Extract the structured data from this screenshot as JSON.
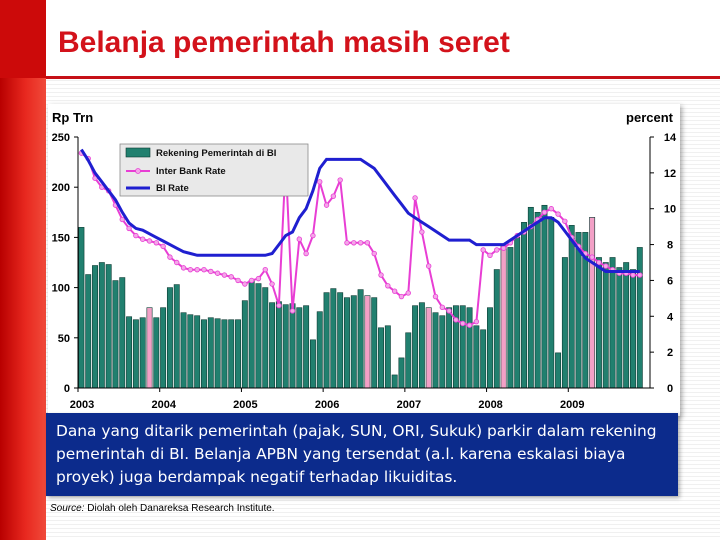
{
  "slide": {
    "title": "Belanja pemerintah masih seret",
    "caption": "Dana yang ditarik pemerintah (pajak, SUN, ORI, Sukuk) parkir dalam rekening pemerintah di BI. Belanja APBN yang tersendat (a.l. karena eskalasi biaya proyek) juga berdampak negatif terhadap likuiditas.",
    "source_label": "Source:",
    "source_text": " Diolah oleh Danareksa Research Institute."
  },
  "colors": {
    "bar_fill": "#21806f",
    "bar_highlight": "#f2a0c6",
    "interbank": "#e83ed4",
    "interbank_marker": "#f4a6e8",
    "bi_rate": "#1f1fd0",
    "title": "#d3121b",
    "caption_bg": "#0c2b8c"
  },
  "chart_data": {
    "type": "bar",
    "ylabel_left": "Rp Trn",
    "ylabel_right": "percent",
    "ylim_left": [
      0,
      250
    ],
    "ylim_right": [
      0,
      14
    ],
    "yticks_left": [
      "0",
      "50",
      "100",
      "150",
      "200",
      "250"
    ],
    "yticks_right": [
      "0",
      "2",
      "4",
      "6",
      "8",
      "10",
      "12",
      "14"
    ],
    "xticks": [
      "2003",
      "2004",
      "2005",
      "2006",
      "2007",
      "2008",
      "2009"
    ],
    "x_start": 2003.0,
    "x_step_months": 1,
    "legend": {
      "placement": "top-left",
      "entries": [
        "Rekening Pemerintah di BI",
        "Inter Bank Rate",
        "BI Rate"
      ]
    },
    "series": [
      {
        "name": "Rekening Pemerintah di BI",
        "kind": "bar",
        "axis": "left",
        "highlighted_months": [
          10,
          42,
          51,
          62,
          75,
          124
        ],
        "values": [
          160,
          113,
          122,
          125,
          123,
          107,
          110,
          71,
          68,
          70,
          80,
          70,
          80,
          100,
          103,
          75,
          73,
          72,
          68,
          70,
          69,
          68,
          68,
          68,
          87,
          107,
          104,
          100,
          85,
          86,
          83,
          84,
          80,
          82,
          48,
          76,
          95,
          99,
          95,
          90,
          92,
          98,
          92,
          90,
          60,
          62,
          13,
          30,
          55,
          82,
          85,
          80,
          75,
          72,
          80,
          82,
          82,
          80,
          62,
          58,
          80,
          118,
          142,
          140,
          150,
          165,
          180,
          175,
          182,
          170,
          35,
          130,
          162,
          155,
          155,
          170,
          130,
          125,
          130,
          120,
          125,
          118,
          140
        ]
      },
      {
        "name": "Inter Bank Rate",
        "kind": "line",
        "axis": "right",
        "values": [
          13.1,
          12.8,
          11.7,
          11.2,
          11.0,
          10.2,
          9.4,
          8.9,
          8.5,
          8.3,
          8.2,
          8.1,
          7.9,
          7.3,
          7.0,
          6.7,
          6.6,
          6.6,
          6.6,
          6.5,
          6.4,
          6.3,
          6.2,
          6.0,
          5.8,
          6.0,
          6.1,
          6.6,
          5.8,
          4.6,
          12.6,
          4.3,
          8.3,
          7.5,
          8.5,
          11.5,
          10.2,
          10.7,
          11.6,
          8.1,
          8.1,
          8.1,
          8.1,
          7.5,
          6.3,
          5.7,
          5.4,
          5.1,
          5.3,
          10.6,
          8.7,
          6.8,
          5.1,
          4.5,
          4.3,
          3.8,
          3.6,
          3.5,
          3.7,
          7.7,
          7.4,
          7.7,
          7.8,
          8.1,
          8.5,
          8.7,
          9.0,
          9.4,
          9.8,
          10.0,
          9.7,
          9.3,
          8.4,
          7.9,
          7.5,
          7.3,
          7.0,
          6.8,
          6.6,
          6.4,
          6.4,
          6.3,
          6.3
        ]
      },
      {
        "name": "BI Rate",
        "kind": "line",
        "axis": "right",
        "values": [
          13.3,
          12.7,
          12.0,
          11.5,
          11.0,
          10.5,
          9.8,
          9.2,
          8.9,
          8.8,
          8.6,
          8.4,
          8.2,
          8.0,
          7.8,
          7.6,
          7.5,
          7.4,
          7.4,
          7.4,
          7.4,
          7.4,
          7.4,
          7.4,
          7.4,
          7.4,
          7.4,
          7.4,
          7.5,
          8.0,
          8.5,
          8.7,
          9.5,
          10.0,
          11.0,
          12.25,
          12.75,
          12.75,
          12.75,
          12.75,
          12.75,
          12.75,
          12.5,
          12.25,
          11.75,
          11.25,
          10.75,
          10.25,
          9.75,
          9.5,
          9.25,
          9.0,
          8.75,
          8.5,
          8.25,
          8.25,
          8.25,
          8.25,
          8.0,
          8.0,
          8.0,
          8.0,
          8.0,
          8.25,
          8.5,
          8.75,
          9.0,
          9.25,
          9.5,
          9.5,
          9.25,
          8.75,
          8.25,
          7.75,
          7.25,
          7.0,
          6.75,
          6.5,
          6.5,
          6.5,
          6.5,
          6.5,
          6.5
        ]
      }
    ]
  }
}
